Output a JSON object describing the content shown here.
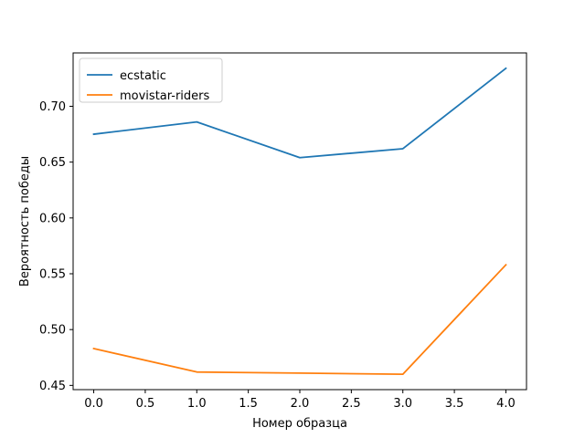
{
  "chart_data": {
    "type": "line",
    "title": "",
    "xlabel": "Номер образца",
    "ylabel": "Вероятность победы",
    "x": [
      0,
      1,
      2,
      3,
      4
    ],
    "series": [
      {
        "name": "ecstatic",
        "color": "#1f77b4",
        "values": [
          0.675,
          0.686,
          0.654,
          0.662,
          0.734
        ]
      },
      {
        "name": "movistar-riders",
        "color": "#ff7f0e",
        "values": [
          0.483,
          0.462,
          0.461,
          0.46,
          0.558
        ]
      }
    ],
    "xlim": [
      -0.2,
      4.2
    ],
    "ylim": [
      0.4462,
      0.7478
    ],
    "xticks": [
      0.0,
      0.5,
      1.0,
      1.5,
      2.0,
      2.5,
      3.0,
      3.5,
      4.0
    ],
    "xtick_labels": [
      "0.0",
      "0.5",
      "1.0",
      "1.5",
      "2.0",
      "2.5",
      "3.0",
      "3.5",
      "4.0"
    ],
    "yticks": [
      0.45,
      0.5,
      0.55,
      0.6,
      0.65,
      0.7
    ],
    "ytick_labels": [
      "0.45",
      "0.50",
      "0.55",
      "0.60",
      "0.65",
      "0.70"
    ],
    "grid": false,
    "legend_position": "top-left"
  }
}
